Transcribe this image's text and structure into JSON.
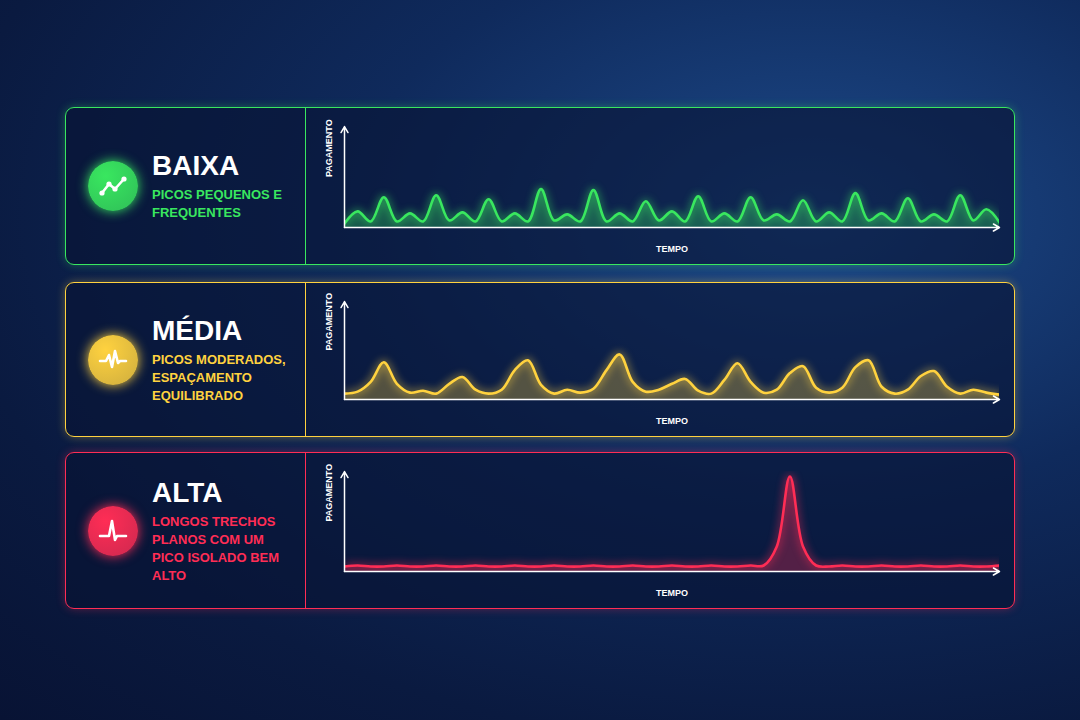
{
  "chart_data": [
    {
      "type": "area",
      "title": "BAIXA",
      "subtitle": "PICOS PEQUENOS E FREQUENTES",
      "x_label": "TEMPO",
      "y_label": "PAGAMENTO",
      "color": "#39e75f",
      "xlim": [
        0,
        200
      ],
      "ylim": [
        0,
        100
      ],
      "tick_labels": false,
      "x": [
        0,
        4,
        8,
        12,
        16,
        20,
        24,
        28,
        32,
        36,
        40,
        44,
        48,
        52,
        56,
        60,
        64,
        68,
        72,
        76,
        80,
        84,
        88,
        92,
        96,
        100,
        104,
        108,
        112,
        116,
        120,
        124,
        128,
        132,
        136,
        140,
        144,
        148,
        152,
        156,
        160,
        164,
        168,
        172,
        176,
        180,
        184,
        188,
        192,
        196,
        200
      ],
      "values": [
        4,
        16,
        6,
        30,
        6,
        14,
        6,
        32,
        7,
        15,
        6,
        28,
        6,
        14,
        6,
        38,
        7,
        13,
        6,
        37,
        6,
        14,
        6,
        26,
        7,
        16,
        6,
        31,
        6,
        14,
        6,
        30,
        7,
        13,
        6,
        27,
        6,
        15,
        6,
        34,
        7,
        14,
        6,
        29,
        6,
        13,
        6,
        32,
        7,
        18,
        5
      ]
    },
    {
      "type": "area",
      "title": "MÉDIA",
      "subtitle": "PICOS MODERADOS, ESPAÇAMENTO EQUILIBRADO",
      "x_label": "TEMPO",
      "y_label": "PAGAMENTO",
      "color": "#ffd23f",
      "xlim": [
        0,
        200
      ],
      "ylim": [
        0,
        100
      ],
      "tick_labels": false,
      "x": [
        0,
        4,
        8,
        12,
        16,
        20,
        24,
        28,
        32,
        36,
        40,
        44,
        48,
        52,
        56,
        60,
        64,
        68,
        72,
        76,
        80,
        84,
        88,
        92,
        96,
        100,
        104,
        108,
        112,
        116,
        120,
        124,
        128,
        132,
        136,
        140,
        144,
        148,
        152,
        156,
        160,
        164,
        168,
        172,
        176,
        180,
        184,
        188,
        192,
        196,
        200
      ],
      "values": [
        6,
        8,
        18,
        38,
        16,
        7,
        9,
        6,
        16,
        23,
        10,
        6,
        10,
        30,
        40,
        15,
        6,
        10,
        7,
        11,
        30,
        46,
        18,
        8,
        10,
        16,
        21,
        9,
        6,
        20,
        37,
        18,
        7,
        10,
        27,
        34,
        12,
        7,
        12,
        33,
        40,
        13,
        6,
        10,
        24,
        29,
        13,
        6,
        10,
        7,
        5
      ]
    },
    {
      "type": "area",
      "title": "ALTA",
      "subtitle": "LONGOS TRECHOS PLANOS COM UM PICO ISOLADO BEM ALTO",
      "x_label": "TEMPO",
      "y_label": "PAGAMENTO",
      "color": "#ff2d55",
      "xlim": [
        0,
        200
      ],
      "ylim": [
        0,
        100
      ],
      "tick_labels": false,
      "x": [
        0,
        4,
        8,
        12,
        16,
        20,
        24,
        28,
        32,
        36,
        40,
        44,
        48,
        52,
        56,
        60,
        64,
        68,
        72,
        76,
        80,
        84,
        88,
        92,
        96,
        100,
        104,
        108,
        112,
        116,
        120,
        124,
        128,
        132,
        136,
        140,
        144,
        148,
        152,
        156,
        160,
        164,
        168,
        172,
        176,
        180,
        184,
        188,
        192,
        196,
        200
      ],
      "values": [
        5,
        6,
        5,
        5,
        6,
        5,
        5,
        6,
        5,
        5,
        6,
        5,
        5,
        6,
        5,
        5,
        6,
        5,
        5,
        6,
        5,
        5,
        6,
        5,
        5,
        6,
        5,
        5,
        6,
        5,
        5,
        6,
        6,
        25,
        95,
        25,
        6,
        5,
        6,
        5,
        5,
        6,
        5,
        5,
        6,
        5,
        5,
        6,
        5,
        5,
        6
      ]
    }
  ]
}
